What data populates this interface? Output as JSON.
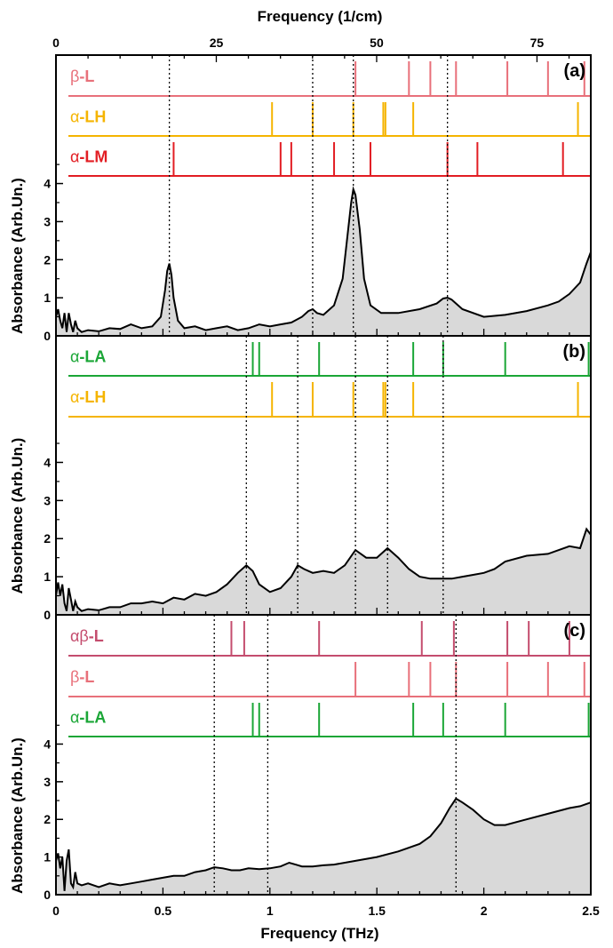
{
  "chart_data": {
    "type": "line",
    "bottom_axis": {
      "label": "Frequency (THz)",
      "range": [
        0,
        2.5
      ],
      "ticks": [
        "0",
        "0.5",
        "1",
        "1.5",
        "2",
        "2.5"
      ]
    },
    "top_axis": {
      "label": "Frequency (1/cm)",
      "range": [
        0,
        83.39
      ],
      "ticks": [
        "0",
        "25",
        "50",
        "75"
      ]
    },
    "y_axis_label": "Absorbance (Arb.Un.)",
    "colors": {
      "beta_L": "#e8707a",
      "alpha_LH": "#f5b400",
      "alpha_LM": "#e21d23",
      "alpha_LA": "#1aa636",
      "alphabeta_L": "#c44d6e",
      "spectrum_fill": "#d9d9d9",
      "spectrum_line": "#000000"
    },
    "panels": [
      {
        "tag": "(a)",
        "ylim": [
          0,
          4.2
        ],
        "yticks": [
          "0",
          "1",
          "2",
          "3",
          "4"
        ],
        "strips": [
          {
            "label_greek": "β",
            "label_rest": "-L",
            "color_key": "beta_L",
            "lines": [
              1.4,
              1.65,
              1.75,
              1.87,
              2.11,
              2.3,
              2.47
            ]
          },
          {
            "label_greek": "α",
            "label_rest": "-LH",
            "color_key": "alpha_LH",
            "lines": [
              1.01,
              1.2,
              1.39,
              1.53,
              1.54,
              1.67,
              2.44
            ]
          },
          {
            "label_greek": "α",
            "label_rest": "-LM",
            "color_key": "alpha_LM",
            "lines": [
              0.55,
              1.05,
              1.1,
              1.3,
              1.47,
              1.83,
              1.97,
              2.37
            ]
          }
        ],
        "guides": [
          0.53,
          1.2,
          1.39,
          1.83
        ],
        "spectrum": {
          "x": [
            0,
            0.01,
            0.02,
            0.03,
            0.04,
            0.05,
            0.06,
            0.07,
            0.08,
            0.09,
            0.1,
            0.11,
            0.12,
            0.15,
            0.2,
            0.25,
            0.3,
            0.35,
            0.4,
            0.45,
            0.49,
            0.51,
            0.52,
            0.53,
            0.54,
            0.55,
            0.57,
            0.6,
            0.65,
            0.7,
            0.75,
            0.8,
            0.85,
            0.9,
            0.95,
            1.0,
            1.05,
            1.1,
            1.15,
            1.18,
            1.2,
            1.22,
            1.25,
            1.3,
            1.34,
            1.36,
            1.38,
            1.39,
            1.4,
            1.42,
            1.44,
            1.47,
            1.52,
            1.6,
            1.7,
            1.78,
            1.81,
            1.83,
            1.85,
            1.9,
            2.0,
            2.1,
            2.2,
            2.3,
            2.35,
            2.4,
            2.45,
            2.48,
            2.5
          ],
          "y": [
            0.5,
            0.7,
            0.4,
            0.2,
            0.6,
            0.1,
            0.6,
            0.3,
            0.1,
            0.4,
            0.2,
            0.15,
            0.1,
            0.15,
            0.12,
            0.2,
            0.18,
            0.3,
            0.2,
            0.25,
            0.5,
            1.2,
            1.7,
            1.9,
            1.6,
            1.0,
            0.4,
            0.2,
            0.25,
            0.15,
            0.2,
            0.25,
            0.15,
            0.2,
            0.3,
            0.25,
            0.3,
            0.35,
            0.5,
            0.65,
            0.7,
            0.6,
            0.55,
            0.8,
            1.5,
            2.5,
            3.5,
            3.85,
            3.7,
            2.8,
            1.5,
            0.8,
            0.6,
            0.6,
            0.7,
            0.85,
            0.98,
            1.0,
            0.95,
            0.7,
            0.5,
            0.55,
            0.65,
            0.8,
            0.9,
            1.1,
            1.4,
            1.9,
            2.2
          ]
        }
      },
      {
        "tag": "(b)",
        "ylim": [
          0,
          5.2
        ],
        "yticks": [
          "0",
          "1",
          "2",
          "3",
          "4"
        ],
        "strips": [
          {
            "label_greek": "α",
            "label_rest": "-LA",
            "color_key": "alpha_LA",
            "lines": [
              0.92,
              0.95,
              1.23,
              1.67,
              1.81,
              2.1,
              2.49
            ]
          },
          {
            "label_greek": "α",
            "label_rest": "-LH",
            "color_key": "alpha_LH",
            "lines": [
              1.01,
              1.2,
              1.39,
              1.53,
              1.54,
              1.67,
              2.44
            ]
          }
        ],
        "guides": [
          0.89,
          1.13,
          1.4,
          1.55,
          1.81
        ],
        "spectrum": {
          "x": [
            0,
            0.01,
            0.02,
            0.03,
            0.04,
            0.05,
            0.06,
            0.07,
            0.08,
            0.09,
            0.1,
            0.11,
            0.12,
            0.15,
            0.2,
            0.25,
            0.3,
            0.35,
            0.4,
            0.45,
            0.5,
            0.55,
            0.6,
            0.65,
            0.7,
            0.75,
            0.8,
            0.85,
            0.89,
            0.92,
            0.95,
            1.0,
            1.05,
            1.1,
            1.13,
            1.16,
            1.2,
            1.25,
            1.3,
            1.35,
            1.4,
            1.45,
            1.5,
            1.55,
            1.6,
            1.65,
            1.7,
            1.75,
            1.8,
            1.85,
            1.9,
            1.95,
            2.0,
            2.05,
            2.1,
            2.2,
            2.3,
            2.4,
            2.45,
            2.48,
            2.5
          ],
          "y": [
            0.5,
            0.85,
            0.5,
            0.8,
            0.3,
            0.1,
            0.7,
            0.4,
            0.1,
            0.35,
            0.2,
            0.15,
            0.1,
            0.15,
            0.12,
            0.2,
            0.2,
            0.3,
            0.3,
            0.35,
            0.3,
            0.45,
            0.4,
            0.55,
            0.5,
            0.6,
            0.8,
            1.1,
            1.3,
            1.15,
            0.8,
            0.6,
            0.7,
            1.0,
            1.3,
            1.2,
            1.1,
            1.15,
            1.1,
            1.3,
            1.7,
            1.5,
            1.5,
            1.75,
            1.5,
            1.2,
            1.0,
            0.95,
            0.95,
            0.95,
            1.0,
            1.05,
            1.1,
            1.2,
            1.4,
            1.55,
            1.6,
            1.8,
            1.75,
            2.25,
            2.1
          ]
        }
      },
      {
        "tag": "(c)",
        "ylim": [
          0,
          4.2
        ],
        "yticks": [
          "0",
          "1",
          "2",
          "3",
          "4"
        ],
        "strips": [
          {
            "label_greek": "αβ",
            "label_rest": "-L",
            "color_key": "alphabeta_L",
            "lines": [
              0.82,
              0.88,
              1.23,
              1.71,
              1.86,
              2.11,
              2.21,
              2.4
            ]
          },
          {
            "label_greek": "β",
            "label_rest": "-L",
            "color_key": "beta_L",
            "lines": [
              1.4,
              1.65,
              1.75,
              1.87,
              2.11,
              2.3,
              2.47
            ]
          },
          {
            "label_greek": "α",
            "label_rest": "-LA",
            "color_key": "alpha_LA",
            "lines": [
              0.92,
              0.95,
              1.23,
              1.67,
              1.81,
              2.1,
              2.49
            ]
          }
        ],
        "guides": [
          0.74,
          0.99,
          1.87
        ],
        "spectrum": {
          "x": [
            0,
            0.01,
            0.02,
            0.03,
            0.04,
            0.05,
            0.06,
            0.07,
            0.08,
            0.09,
            0.1,
            0.12,
            0.15,
            0.2,
            0.25,
            0.3,
            0.35,
            0.4,
            0.45,
            0.5,
            0.55,
            0.6,
            0.65,
            0.7,
            0.74,
            0.78,
            0.82,
            0.86,
            0.9,
            0.95,
            1.0,
            1.05,
            1.09,
            1.12,
            1.15,
            1.2,
            1.25,
            1.3,
            1.4,
            1.5,
            1.6,
            1.7,
            1.75,
            1.8,
            1.84,
            1.87,
            1.9,
            1.95,
            2.0,
            2.05,
            2.1,
            2.2,
            2.3,
            2.4,
            2.45,
            2.5
          ],
          "y": [
            0.9,
            1.1,
            0.7,
            1.0,
            0.1,
            0.9,
            1.2,
            0.3,
            0.2,
            0.6,
            0.3,
            0.25,
            0.3,
            0.2,
            0.3,
            0.25,
            0.3,
            0.35,
            0.4,
            0.45,
            0.5,
            0.5,
            0.6,
            0.65,
            0.73,
            0.7,
            0.65,
            0.65,
            0.7,
            0.68,
            0.7,
            0.75,
            0.85,
            0.8,
            0.75,
            0.75,
            0.78,
            0.8,
            0.9,
            1.0,
            1.15,
            1.35,
            1.55,
            1.9,
            2.3,
            2.55,
            2.45,
            2.25,
            2.0,
            1.85,
            1.85,
            2.0,
            2.15,
            2.3,
            2.35,
            2.45
          ]
        }
      }
    ]
  }
}
